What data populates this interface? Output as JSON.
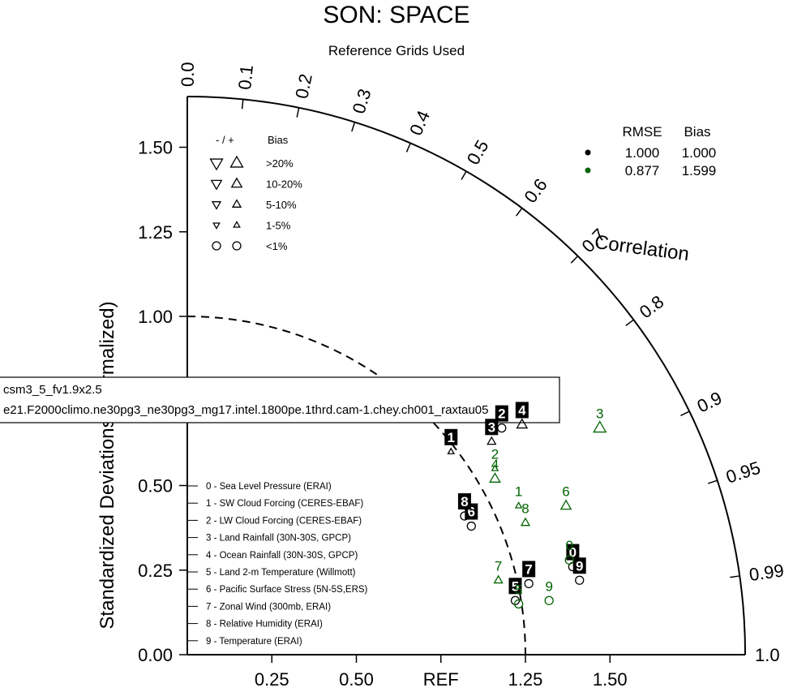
{
  "title": "SON: SPACE",
  "subtitle": "Reference Grids Used",
  "chart_data": {
    "type": "scatter",
    "subtype": "taylor-diagram",
    "x_ticks": [
      "0.25",
      "0.50",
      "REF",
      "1.25",
      "1.50"
    ],
    "y_ticks": [
      "0.00",
      "0.25",
      "0.50",
      "0.75",
      "1.00",
      "1.25",
      "1.50"
    ],
    "ylabel": "Standardized Deviations (Normalized)",
    "arc_label": "Correlation",
    "corr_ticks": [
      "0.0",
      "0.1",
      "0.2",
      "0.3",
      "0.4",
      "0.5",
      "0.6",
      "0.7",
      "0.8",
      "0.9",
      "0.95",
      "0.99",
      "1.0"
    ],
    "corr_values": [
      0.0,
      0.1,
      0.2,
      0.3,
      0.4,
      0.5,
      0.6,
      0.7,
      0.8,
      0.9,
      0.95,
      0.99,
      1.0
    ],
    "range": [
      0,
      1.65
    ],
    "reference_arc": 1.0,
    "bias_legend": {
      "header_sign": "- / +",
      "header_bias": "Bias",
      "rows": [
        ">20%",
        "10-20%",
        "5-10%",
        "1-5%",
        "<1%"
      ]
    },
    "rmse_table": {
      "headers": [
        "RMSE",
        "Bias"
      ],
      "rows": [
        {
          "color": "#000000",
          "rmse": "1.000",
          "bias": "1.000"
        },
        {
          "color": "#006400",
          "rmse": "0.877",
          "bias": "1.599"
        }
      ]
    },
    "case_labels": [
      "csm3_5_fv1.9x2.5",
      "e21.F2000climo.ne30pg3_ne30pg3_mg17.intel.1800pe.1thrd.cam-1.chey.ch001_raxtau05"
    ],
    "variables": [
      "0 - Sea Level Pressure (ERAI)",
      "1 - SW Cloud Forcing (CERES-EBAF)",
      "2 - LW Cloud Forcing (CERES-EBAF)",
      "3 - Land Rainfall (30N-30S, GPCP)",
      "4 - Ocean Rainfall (30N-30S, GPCP)",
      "5 - Land 2-m Temperature (Willmott)",
      "6 - Pacific Surface Stress (5N-5S,ERS)",
      "7 - Zonal Wind (300mb, ERAI)",
      "8 - Relative Humidity (ERAI)",
      "9 - Temperature (ERAI)"
    ],
    "series": [
      {
        "color": "#000000",
        "points": [
          {
            "id": "0",
            "x": 1.14,
            "y": 0.26,
            "marker": "circle",
            "bias_class": "<1%"
          },
          {
            "id": "1",
            "x": 0.78,
            "y": 0.6,
            "marker": "up",
            "bias_class": "1-5%"
          },
          {
            "id": "2",
            "x": 0.93,
            "y": 0.67,
            "marker": "circle",
            "bias_class": "<1%"
          },
          {
            "id": "3",
            "x": 0.9,
            "y": 0.63,
            "marker": "up",
            "bias_class": "5-10%"
          },
          {
            "id": "4",
            "x": 0.99,
            "y": 0.68,
            "marker": "up",
            "bias_class": "10-20%"
          },
          {
            "id": "5",
            "x": 0.97,
            "y": 0.16,
            "marker": "circle",
            "bias_class": "<1%"
          },
          {
            "id": "6",
            "x": 0.84,
            "y": 0.38,
            "marker": "circle",
            "bias_class": "<1%"
          },
          {
            "id": "7",
            "x": 1.01,
            "y": 0.21,
            "marker": "circle",
            "bias_class": "<1%"
          },
          {
            "id": "8",
            "x": 0.82,
            "y": 0.41,
            "marker": "circle",
            "bias_class": "<1%"
          },
          {
            "id": "9",
            "x": 1.16,
            "y": 0.22,
            "marker": "circle",
            "bias_class": "<1%"
          }
        ]
      },
      {
        "color": "#006400",
        "points": [
          {
            "id": "0",
            "x": 1.13,
            "y": 0.28,
            "marker": "circle",
            "bias_class": "<1%"
          },
          {
            "id": "1",
            "x": 0.98,
            "y": 0.44,
            "marker": "up",
            "bias_class": "1-5%"
          },
          {
            "id": "2",
            "x": 0.91,
            "y": 0.55,
            "marker": "up",
            "bias_class": "1-5%"
          },
          {
            "id": "3",
            "x": 1.22,
            "y": 0.67,
            "marker": "up",
            "bias_class": ">20%"
          },
          {
            "id": "4",
            "x": 0.91,
            "y": 0.52,
            "marker": "up",
            "bias_class": "10-20%"
          },
          {
            "id": "5",
            "x": 0.98,
            "y": 0.15,
            "marker": "circle",
            "bias_class": "<1%"
          },
          {
            "id": "6",
            "x": 1.12,
            "y": 0.44,
            "marker": "up",
            "bias_class": "10-20%"
          },
          {
            "id": "7",
            "x": 0.92,
            "y": 0.22,
            "marker": "up",
            "bias_class": "5-10%"
          },
          {
            "id": "8",
            "x": 1.0,
            "y": 0.39,
            "marker": "up",
            "bias_class": "5-10%"
          },
          {
            "id": "9",
            "x": 1.07,
            "y": 0.16,
            "marker": "circle",
            "bias_class": "<1%"
          }
        ]
      }
    ]
  }
}
